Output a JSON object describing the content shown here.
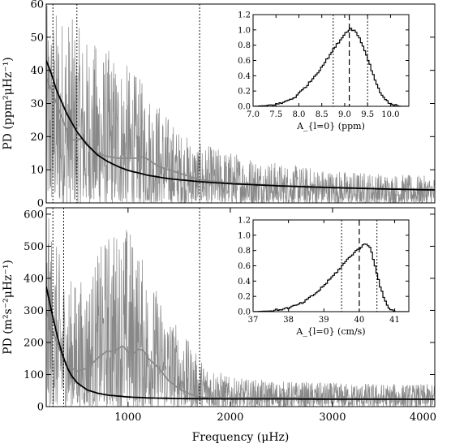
{
  "chart_data": [
    {
      "type": "line",
      "panel": "top",
      "xlabel": "",
      "ylabel": "PD (ppm²μHz⁻¹)",
      "xlim": [
        200,
        4000
      ],
      "ylim": [
        0,
        60
      ],
      "xticks": [],
      "yticks": [
        0,
        10,
        20,
        30,
        40,
        50,
        60
      ],
      "ytick_labels": [
        "0",
        "10",
        "20",
        "30",
        "40",
        "50",
        "60"
      ],
      "vlines": [
        {
          "x": 265,
          "style": "dotted"
        },
        {
          "x": 500,
          "style": "dotted"
        },
        {
          "x": 1700,
          "style": "dotted"
        }
      ],
      "series": [
        {
          "color": "#888888",
          "style": "noisy-spectrum",
          "envelope_x": [
            200,
            400,
            600,
            900,
            1200,
            1500,
            1700,
            2500,
            3000,
            4000
          ],
          "envelope_y": [
            60,
            58,
            50,
            45,
            35,
            22,
            18,
            12,
            10,
            8
          ]
        },
        {
          "color": "#8a8a8a",
          "style": "smoothed",
          "x": [
            200,
            300,
            400,
            450,
            500,
            550,
            600,
            650,
            700,
            750,
            800,
            900,
            1000,
            1100,
            1150,
            1200,
            1300,
            1400,
            1500,
            1600,
            1700,
            2000,
            2500,
            3000,
            3500,
            4000
          ],
          "y": [
            38,
            30,
            22,
            19,
            19,
            19.5,
            18,
            16,
            15,
            14.5,
            14,
            13.5,
            13.5,
            13.5,
            14,
            13,
            11,
            10,
            9,
            8,
            7,
            6,
            5.2,
            4.7,
            4.3,
            4
          ]
        },
        {
          "color": "#000000",
          "style": "fit",
          "x": [
            200,
            250,
            300,
            400,
            500,
            600,
            700,
            800,
            900,
            1000,
            1200,
            1400,
            1700,
            2000,
            2500,
            3000,
            3500,
            4000
          ],
          "y": [
            43,
            39,
            34,
            27,
            21.5,
            17.5,
            14.5,
            12.5,
            11,
            9.8,
            8.3,
            7.3,
            6.4,
            5.8,
            5.1,
            4.6,
            4.2,
            3.9
          ]
        }
      ]
    },
    {
      "type": "line",
      "panel": "top-inset",
      "xlabel": "A_{l=0} (ppm)",
      "xlim": [
        7.0,
        10.4
      ],
      "ylim": [
        0,
        1.2
      ],
      "xticks": [
        7.0,
        7.5,
        8.0,
        8.5,
        9.0,
        9.5,
        10.0
      ],
      "xtick_labels": [
        "7.0",
        "7.5",
        "8.0",
        "8.5",
        "9.0",
        "9.5",
        "10.0"
      ],
      "yticks": [
        0,
        0.2,
        0.4,
        0.6,
        0.8,
        1.0,
        1.2
      ],
      "ytick_labels": [
        "0.0",
        "0.2",
        "0.4",
        "0.6",
        "0.8",
        "1.0",
        "1.2"
      ],
      "vlines": [
        {
          "x": 8.75,
          "style": "dotted"
        },
        {
          "x": 9.1,
          "style": "dashed"
        },
        {
          "x": 9.5,
          "style": "dotted"
        }
      ],
      "series": [
        {
          "color": "#000000",
          "style": "step",
          "x": [
            7.0,
            7.3,
            7.6,
            7.9,
            8.2,
            8.4,
            8.6,
            8.8,
            8.9,
            9.0,
            9.1,
            9.2,
            9.3,
            9.4,
            9.5,
            9.6,
            9.7,
            9.8,
            9.9,
            10.0,
            10.1,
            10.2,
            10.4
          ],
          "y": [
            0.0,
            0.01,
            0.04,
            0.12,
            0.3,
            0.45,
            0.62,
            0.8,
            0.88,
            0.96,
            1.02,
            0.99,
            0.9,
            0.76,
            0.6,
            0.42,
            0.26,
            0.14,
            0.07,
            0.03,
            0.01,
            0.0,
            0.0
          ]
        }
      ]
    },
    {
      "type": "line",
      "panel": "bottom",
      "xlabel": "Frequency (μHz)",
      "ylabel": "PD (m²s⁻²μHz⁻¹)",
      "xlim": [
        200,
        4000
      ],
      "ylim": [
        0,
        620
      ],
      "xticks": [
        1000,
        2000,
        3000,
        4000
      ],
      "xtick_labels": [
        "1000",
        "2000",
        "3000",
        "4000"
      ],
      "yticks": [
        0,
        100,
        200,
        300,
        400,
        500,
        600
      ],
      "ytick_labels": [
        "0",
        "100",
        "200",
        "300",
        "400",
        "500",
        "600"
      ],
      "vlines": [
        {
          "x": 265,
          "style": "dotted"
        },
        {
          "x": 370,
          "style": "dotted"
        },
        {
          "x": 1700,
          "style": "dotted"
        }
      ],
      "series": [
        {
          "color": "#888888",
          "style": "noisy-spectrum",
          "envelope_x": [
            200,
            400,
            600,
            800,
            1000,
            1200,
            1400,
            1700,
            2000,
            2500,
            3000,
            4000
          ],
          "envelope_y": [
            620,
            400,
            400,
            550,
            580,
            420,
            300,
            150,
            90,
            80,
            75,
            70
          ]
        },
        {
          "color": "#8a8a8a",
          "style": "smoothed",
          "x": [
            200,
            300,
            400,
            500,
            600,
            700,
            800,
            850,
            900,
            950,
            1000,
            1050,
            1100,
            1150,
            1200,
            1300,
            1400,
            1500,
            1600,
            1700,
            1800,
            2000,
            2500,
            3000,
            3500,
            4000
          ],
          "y": [
            300,
            200,
            130,
            110,
            120,
            150,
            175,
            170,
            180,
            190,
            170,
            165,
            180,
            175,
            150,
            120,
            80,
            55,
            40,
            30,
            28,
            27,
            28,
            25,
            24,
            22
          ]
        },
        {
          "color": "#000000",
          "style": "fit",
          "x": [
            200,
            250,
            300,
            350,
            400,
            450,
            500,
            600,
            700,
            800,
            1000,
            1200,
            1500,
            2000,
            2500,
            3000,
            3500,
            4000
          ],
          "y": [
            375,
            300,
            230,
            170,
            125,
            95,
            75,
            52,
            42,
            36,
            30,
            27,
            25,
            24,
            24,
            23,
            23,
            23
          ]
        }
      ]
    },
    {
      "type": "line",
      "panel": "bottom-inset",
      "xlabel": "A_{l=0} (cm/s)",
      "xlim": [
        37.0,
        41.4
      ],
      "ylim": [
        0,
        1.2
      ],
      "xticks": [
        37,
        38,
        39,
        40,
        41
      ],
      "xtick_labels": [
        "37",
        "38",
        "39",
        "40",
        "41"
      ],
      "yticks": [
        0,
        0.2,
        0.4,
        0.6,
        0.8,
        1.0,
        1.2
      ],
      "ytick_labels": [
        "0.0",
        "0.2",
        "0.4",
        "0.6",
        "0.8",
        "1.0",
        "1.2"
      ],
      "vlines": [
        {
          "x": 39.5,
          "style": "dotted"
        },
        {
          "x": 40.0,
          "style": "dashed"
        },
        {
          "x": 40.5,
          "style": "dotted"
        }
      ],
      "series": [
        {
          "color": "#000000",
          "style": "step",
          "x": [
            37.0,
            37.5,
            38.0,
            38.4,
            38.8,
            39.1,
            39.4,
            39.6,
            39.8,
            40.0,
            40.1,
            40.2,
            40.3,
            40.4,
            40.5,
            40.6,
            40.7,
            40.8,
            40.9,
            41.0,
            41.4
          ],
          "y": [
            0.0,
            0.01,
            0.05,
            0.12,
            0.26,
            0.4,
            0.55,
            0.66,
            0.76,
            0.84,
            0.87,
            0.89,
            0.82,
            0.65,
            0.45,
            0.28,
            0.14,
            0.06,
            0.02,
            0.0,
            0.0
          ]
        }
      ]
    }
  ]
}
